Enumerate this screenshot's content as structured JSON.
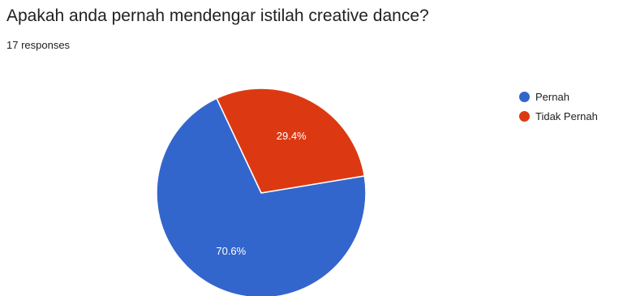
{
  "question": "Apakah anda pernah mendengar istilah creative dance?",
  "responses": "17 responses",
  "chart_data": {
    "type": "pie",
    "title": "Apakah anda pernah mendengar istilah creative dance?",
    "slices": [
      {
        "label": "Tidak Pernah",
        "value": 29.4,
        "display": "29.4%",
        "color": "#dc3912"
      },
      {
        "label": "Pernah",
        "value": 70.6,
        "display": "70.6%",
        "color": "#3366cc"
      }
    ],
    "legend_position": "right"
  }
}
